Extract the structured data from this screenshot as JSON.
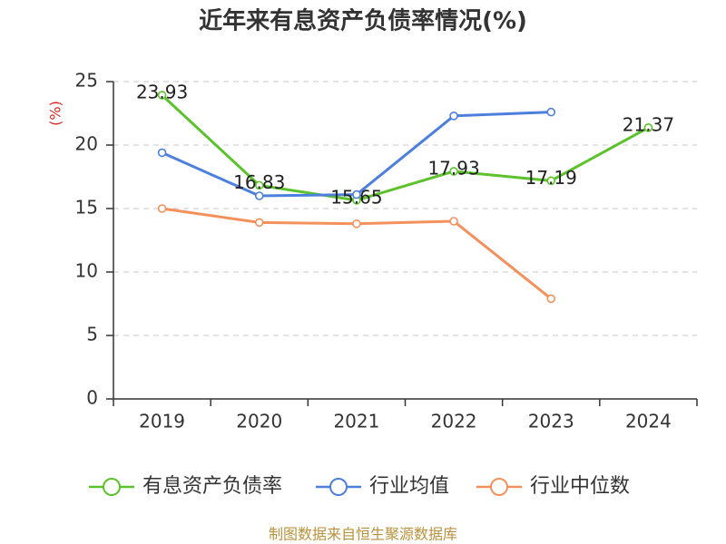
{
  "footer": "制图数据来自恒生聚源数据库",
  "colors": {
    "ylabel": "#d9261c",
    "footer": "#b8913a",
    "axis": "#333333",
    "grid": "#c8c8c8"
  },
  "chart_data": {
    "type": "line",
    "title": "近年来有息资产负债率情况(%)",
    "xlabel": "",
    "ylabel": "(%)",
    "categories": [
      "2019",
      "2020",
      "2021",
      "2022",
      "2023",
      "2024"
    ],
    "ylim": [
      0,
      25
    ],
    "yticks": [
      0,
      5,
      10,
      15,
      20,
      25
    ],
    "grid": true,
    "legend": "bottom",
    "series": [
      {
        "name": "有息资产负债率",
        "color": "#5bc22c",
        "show_labels": true,
        "values": [
          23.93,
          16.83,
          15.65,
          17.93,
          17.19,
          21.37
        ]
      },
      {
        "name": "行业均值",
        "color": "#4d7fdc",
        "show_labels": false,
        "values": [
          19.4,
          16.0,
          16.1,
          22.3,
          22.6,
          null
        ]
      },
      {
        "name": "行业中位数",
        "color": "#f4905c",
        "show_labels": false,
        "values": [
          15.0,
          13.9,
          13.8,
          14.0,
          7.9,
          null
        ]
      }
    ]
  }
}
